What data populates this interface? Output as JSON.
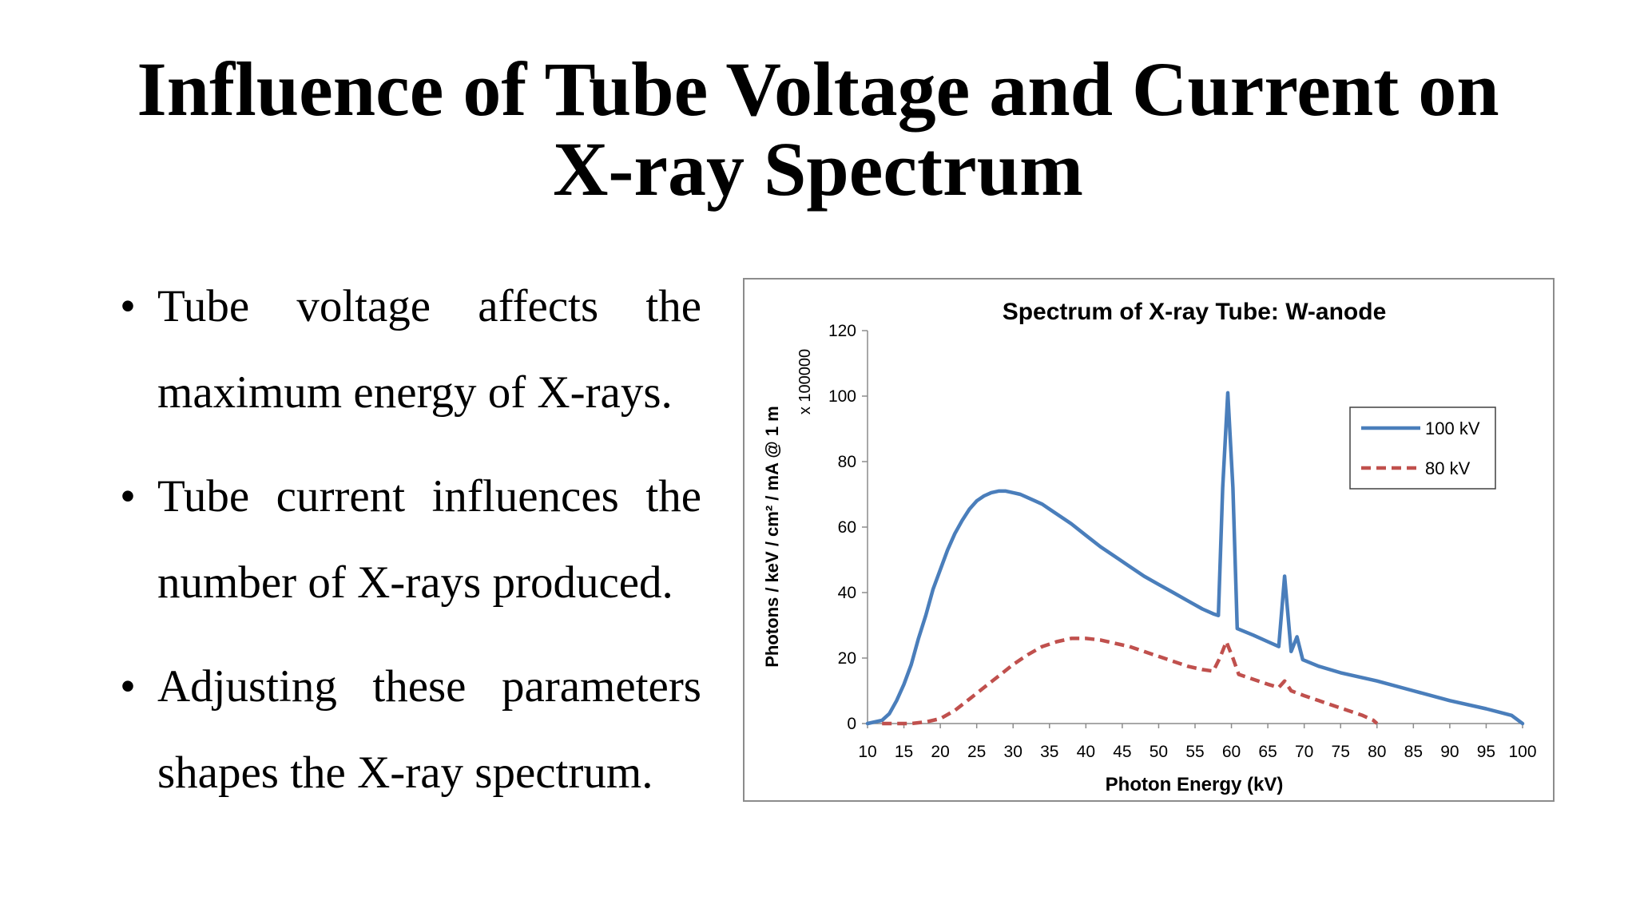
{
  "slide": {
    "title_line1": "Influence of Tube Voltage and Current on",
    "title_line2": "X-ray Spectrum",
    "bullets": [
      "Tube voltage affects the maximum energy of X-rays.",
      "Tube current influences the number of X-rays produced.",
      "Adjusting these parameters shapes the X-ray spectrum."
    ]
  },
  "chart_data": {
    "type": "line",
    "title": "Spectrum of X-ray Tube: W-anode",
    "xlabel": "Photon Energy (kV)",
    "ylabel": "Photons / keV / cm² / mA @ 1 m",
    "y_multiplier_label": "x 100000",
    "xlim": [
      10,
      100
    ],
    "ylim": [
      0,
      120
    ],
    "x_ticks": [
      "10",
      "15",
      "20",
      "25",
      "30",
      "35",
      "40",
      "45",
      "50",
      "55",
      "60",
      "65",
      "70",
      "75",
      "80",
      "85",
      "90",
      "95",
      "100"
    ],
    "y_ticks": [
      "0",
      "20",
      "40",
      "60",
      "80",
      "100",
      "120"
    ],
    "grid": false,
    "legend_position": "top-right",
    "series": [
      {
        "name": "100 kV",
        "color": "#4a7ebb",
        "style": "solid",
        "points": [
          [
            10,
            0
          ],
          [
            12,
            1
          ],
          [
            13,
            3
          ],
          [
            14,
            7
          ],
          [
            15,
            12
          ],
          [
            16,
            18
          ],
          [
            17,
            26
          ],
          [
            18,
            33
          ],
          [
            19,
            41
          ],
          [
            20,
            47
          ],
          [
            21,
            53
          ],
          [
            22,
            58
          ],
          [
            23,
            62
          ],
          [
            24,
            65.5
          ],
          [
            25,
            68
          ],
          [
            26,
            69.5
          ],
          [
            27,
            70.5
          ],
          [
            28,
            71
          ],
          [
            29,
            71
          ],
          [
            30,
            70.5
          ],
          [
            31,
            70
          ],
          [
            32,
            69
          ],
          [
            33,
            68
          ],
          [
            34,
            67
          ],
          [
            35,
            65.5
          ],
          [
            36,
            64
          ],
          [
            38,
            61
          ],
          [
            40,
            57.5
          ],
          [
            42,
            54
          ],
          [
            44,
            51
          ],
          [
            46,
            48
          ],
          [
            48,
            45
          ],
          [
            50,
            42.5
          ],
          [
            52,
            40
          ],
          [
            54,
            37.5
          ],
          [
            56,
            35
          ],
          [
            57.5,
            33.5
          ],
          [
            58.2,
            33
          ],
          [
            58.8,
            72
          ],
          [
            59.5,
            101
          ],
          [
            60.2,
            72
          ],
          [
            60.8,
            29
          ],
          [
            63,
            27
          ],
          [
            65,
            25
          ],
          [
            66.5,
            23.5
          ],
          [
            67.3,
            45
          ],
          [
            68.2,
            22
          ],
          [
            69,
            26.5
          ],
          [
            69.8,
            19.5
          ],
          [
            72,
            17.5
          ],
          [
            75,
            15.5
          ],
          [
            80,
            13
          ],
          [
            85,
            10
          ],
          [
            90,
            7
          ],
          [
            95,
            4.5
          ],
          [
            98.5,
            2.5
          ],
          [
            100,
            0
          ]
        ]
      },
      {
        "name": "80 kV",
        "color": "#c0504d",
        "style": "dashed",
        "points": [
          [
            12,
            0
          ],
          [
            14,
            0
          ],
          [
            16,
            0
          ],
          [
            18,
            0.5
          ],
          [
            20,
            1.5
          ],
          [
            22,
            4
          ],
          [
            24,
            7.5
          ],
          [
            26,
            11
          ],
          [
            28,
            14.5
          ],
          [
            30,
            18
          ],
          [
            32,
            21
          ],
          [
            34,
            23.5
          ],
          [
            36,
            25
          ],
          [
            38,
            26
          ],
          [
            40,
            26
          ],
          [
            42,
            25.5
          ],
          [
            44,
            24.5
          ],
          [
            46,
            23.5
          ],
          [
            48,
            22
          ],
          [
            50,
            20.5
          ],
          [
            52,
            19
          ],
          [
            54,
            17.5
          ],
          [
            56,
            16.5
          ],
          [
            57.5,
            16
          ],
          [
            58.4,
            20
          ],
          [
            59.3,
            25
          ],
          [
            60.2,
            20
          ],
          [
            61,
            15
          ],
          [
            63,
            13.5
          ],
          [
            65,
            12
          ],
          [
            66.5,
            11
          ],
          [
            67.3,
            13
          ],
          [
            68.2,
            10
          ],
          [
            70,
            8.5
          ],
          [
            72,
            7
          ],
          [
            74,
            5.5
          ],
          [
            76,
            4
          ],
          [
            78,
            2.5
          ],
          [
            79.5,
            1
          ],
          [
            80,
            0
          ]
        ]
      }
    ]
  }
}
